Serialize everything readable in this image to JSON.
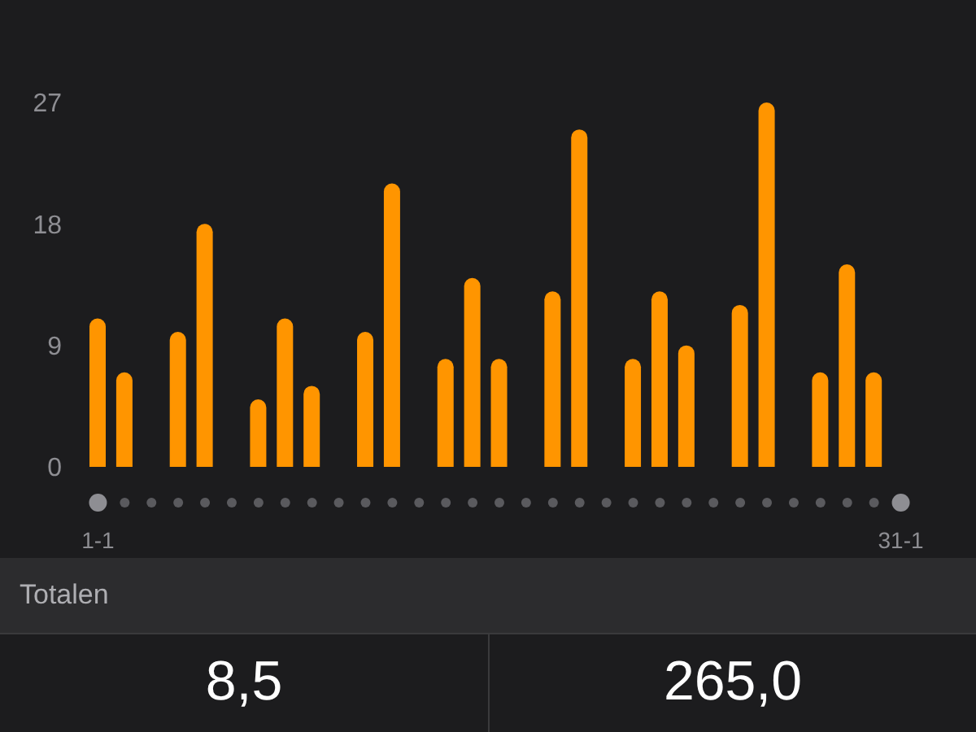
{
  "chart_data": {
    "type": "bar",
    "categories": [
      "1-1",
      null,
      null,
      null,
      null,
      null,
      null,
      null,
      null,
      null,
      null,
      null,
      null,
      null,
      null,
      null,
      null,
      null,
      null,
      null,
      null,
      null,
      null,
      null,
      null,
      null,
      null,
      null,
      null,
      null,
      "31-1"
    ],
    "values": [
      11,
      7,
      0,
      10,
      18,
      0,
      5,
      11,
      6,
      0,
      10,
      21,
      0,
      8,
      14,
      8,
      0,
      13,
      25,
      0,
      8,
      13,
      9,
      0,
      12,
      27,
      0,
      7,
      15,
      7,
      0
    ],
    "color": "#ff9500",
    "ylim": [
      0,
      27
    ],
    "yticks": [
      0,
      9,
      18,
      27
    ],
    "annotations": [
      "Totalen",
      "8,5",
      "265,0"
    ]
  }
}
